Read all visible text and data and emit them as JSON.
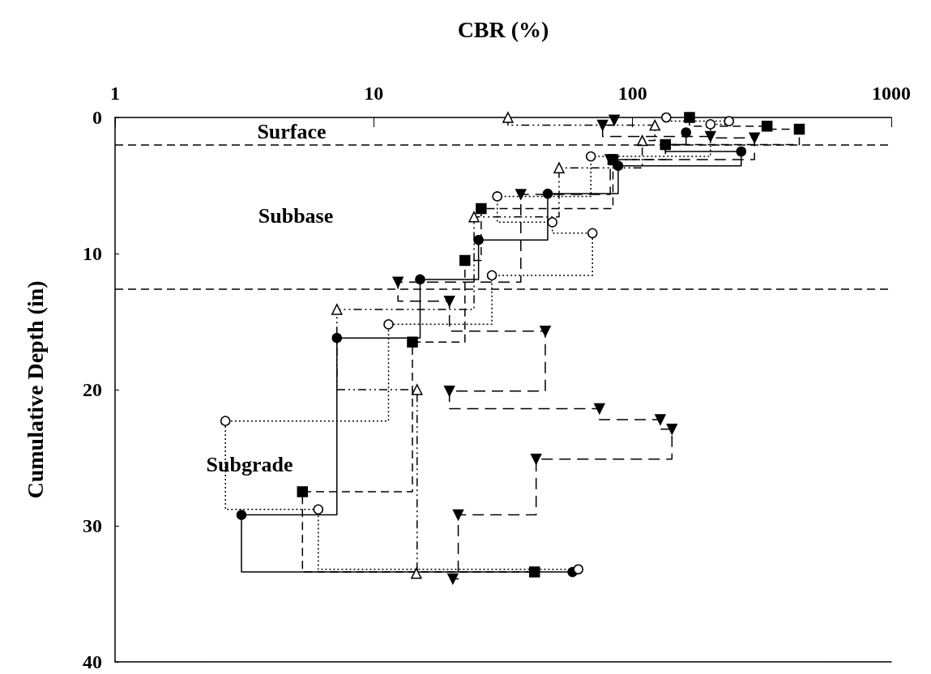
{
  "chart_data": {
    "type": "step",
    "xlabel": "CBR (%)",
    "ylabel": "Cumulative Depth (in)",
    "log": "x",
    "xlim": [
      1,
      1000
    ],
    "xticks": [
      1,
      10,
      100,
      1000
    ],
    "ylim": [
      40,
      0
    ],
    "yticks": [
      0,
      10,
      20,
      30,
      40
    ],
    "grid": false,
    "series": [
      {
        "color": "#000000",
        "marker": "circle",
        "line_style": "solid",
        "x": [
          161,
          134,
          263,
          88,
          47,
          25.4,
          15.1,
          7.2,
          3.08,
          58.6
        ],
        "values": [
          1.1,
          2.0,
          2.5,
          3.55,
          5.6,
          9.0,
          11.9,
          16.2,
          29.2,
          33.4
        ]
      },
      {
        "color": "#000000",
        "marker": "circle-open",
        "line_style": "dotted",
        "x": [
          135,
          236,
          200,
          69,
          30,
          49,
          70,
          28.6,
          11.4,
          2.67,
          6.1,
          61.7
        ],
        "values": [
          0,
          0.27,
          0.5,
          2.86,
          5.8,
          7.7,
          8.5,
          11.6,
          15.2,
          22.3,
          28.8,
          33.2
        ]
      },
      {
        "color": "#000000",
        "marker": "square",
        "line_style": "dashed",
        "x": [
          166,
          331,
          441,
          134,
          84,
          26,
          22.5,
          14.1,
          5.3,
          41.8
        ],
        "values": [
          0,
          0.64,
          0.86,
          2.0,
          3.1,
          6.7,
          10.5,
          16.5,
          27.5,
          33.4
        ]
      },
      {
        "color": "#000000",
        "marker": "triangle-open",
        "line_style": "dashdot",
        "x": [
          33,
          122,
          109,
          52,
          24.4,
          7.2,
          14.7,
          14.6
        ],
        "values": [
          0,
          0.57,
          1.7,
          3.7,
          7.3,
          14.1,
          20.0,
          33.5
        ]
      },
      {
        "color": "#000000",
        "marker": "triangle-down",
        "line_style": "longdash",
        "x": [
          85,
          76.6,
          200,
          296,
          82,
          37,
          12.4,
          19.6,
          46,
          19.6,
          74.5,
          128,
          142,
          42.4,
          21.2,
          20.2
        ],
        "values": [
          0.2,
          0.57,
          1.4,
          1.5,
          3.1,
          5.65,
          12.1,
          13.5,
          15.7,
          20.1,
          21.4,
          22.2,
          22.9,
          25.1,
          29.2,
          33.9
        ]
      }
    ],
    "ref_lines": [
      {
        "axis": "y",
        "value": 2.0,
        "line_style": "dashed"
      },
      {
        "axis": "y",
        "value": 12.6,
        "line_style": "dashed"
      }
    ],
    "annotations": [
      "Surface",
      "Subbase",
      "Subgrade"
    ]
  }
}
